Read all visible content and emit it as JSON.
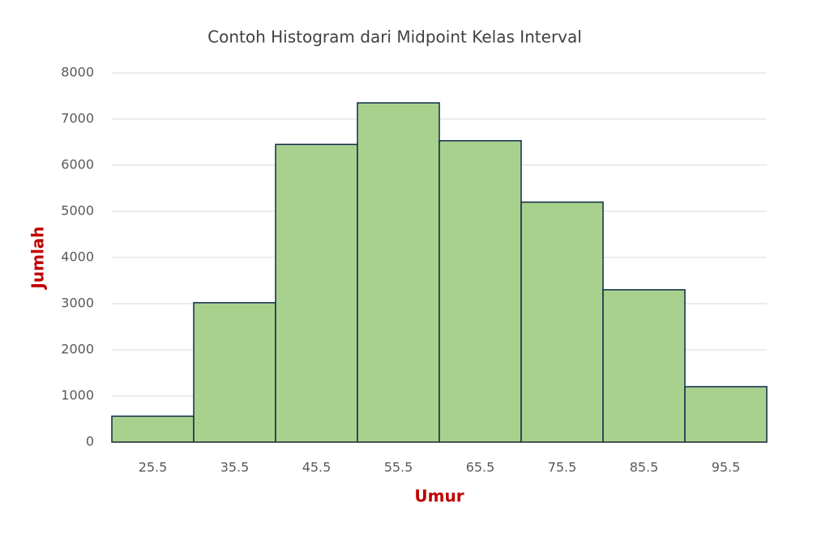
{
  "chart_data": {
    "type": "histogram",
    "title": "Contoh Histogram dari Midpoint Kelas Interval",
    "x_label": "Umur",
    "y_label": "Jumlah",
    "categories": [
      "25.5",
      "35.5",
      "45.5",
      "55.5",
      "65.5",
      "75.5",
      "85.5",
      "95.5"
    ],
    "values": [
      560,
      3020,
      6450,
      7350,
      6530,
      5200,
      3300,
      1200
    ],
    "color": "#a9d18e",
    "edge_color": "#0d2a4a",
    "ylim": [
      0,
      8000
    ],
    "yticks": [
      0,
      1000,
      2000,
      3000,
      4000,
      5000,
      6000,
      7000,
      8000
    ],
    "grid": true
  }
}
